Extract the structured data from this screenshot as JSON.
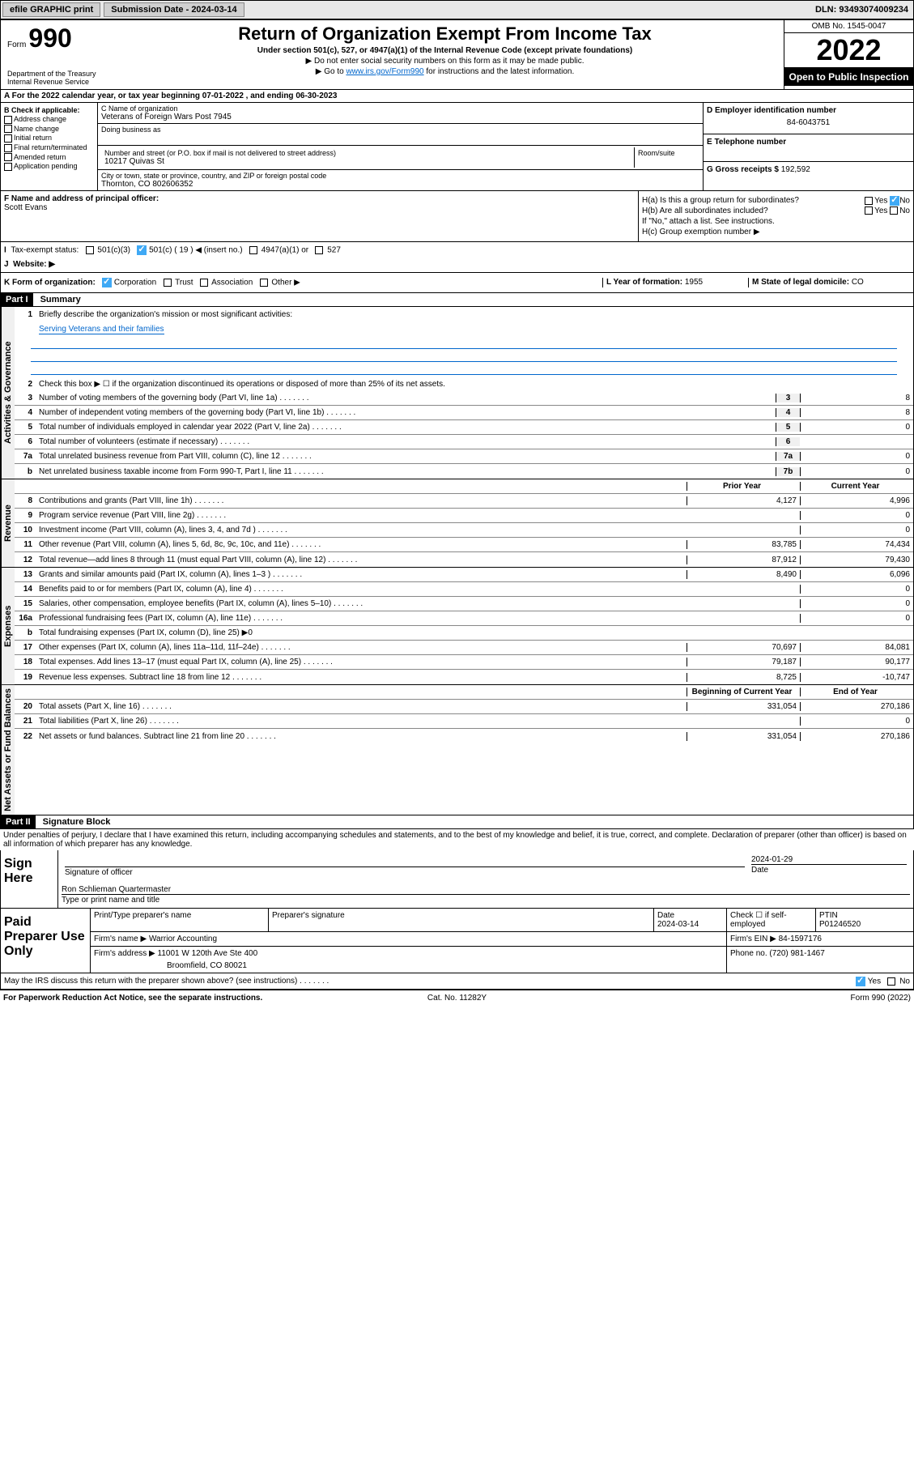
{
  "topbar": {
    "efile": "efile GRAPHIC print",
    "sub_label": "Submission Date - 2024-03-14",
    "dln": "DLN: 93493074009234"
  },
  "header": {
    "form_label": "Form",
    "form_num": "990",
    "title": "Return of Organization Exempt From Income Tax",
    "subtitle": "Under section 501(c), 527, or 4947(a)(1) of the Internal Revenue Code (except private foundations)",
    "info1": "▶ Do not enter social security numbers on this form as it may be made public.",
    "info2_pre": "▶ Go to ",
    "info2_link": "www.irs.gov/Form990",
    "info2_post": " for instructions and the latest information.",
    "omb": "OMB No. 1545-0047",
    "year": "2022",
    "inspection": "Open to Public Inspection",
    "dept": "Department of the Treasury Internal Revenue Service"
  },
  "row_a": "A For the 2022 calendar year, or tax year beginning 07-01-2022   , and ending 06-30-2023",
  "section_b": {
    "check_label": "B Check if applicable:",
    "opts": [
      "Address change",
      "Name change",
      "Initial return",
      "Final return/terminated",
      "Amended return",
      "Application pending"
    ],
    "c_label": "C Name of organization",
    "c_name": "Veterans of Foreign Wars Post 7945",
    "dba_label": "Doing business as",
    "addr_label": "Number and street (or P.O. box if mail is not delivered to street address)",
    "room_label": "Room/suite",
    "addr": "10217 Quivas St",
    "city_label": "City or town, state or province, country, and ZIP or foreign postal code",
    "city": "Thornton, CO  802606352",
    "d_label": "D Employer identification number",
    "d_ein": "84-6043751",
    "e_label": "E Telephone number",
    "g_label": "G Gross receipts $ ",
    "g_val": "192,592"
  },
  "fgh": {
    "f_label": "F Name and address of principal officer:",
    "f_name": "Scott Evans",
    "ha": "H(a)  Is this a group return for subordinates?",
    "ha_yes": "Yes",
    "ha_no": "No",
    "hb": "H(b)  Are all subordinates included?",
    "hb_note": "If \"No,\" attach a list. See instructions.",
    "hc": "H(c)  Group exemption number ▶"
  },
  "ij": {
    "i_label": "Tax-exempt status:",
    "i_501c3": "501(c)(3)",
    "i_501c": "501(c) ( 19 ) ◀ (insert no.)",
    "i_4947": "4947(a)(1) or",
    "i_527": "527",
    "j_label": "Website: ▶"
  },
  "kl": {
    "k_label": "K Form of organization:",
    "k_corp": "Corporation",
    "k_trust": "Trust",
    "k_assoc": "Association",
    "k_other": "Other ▶",
    "l_label": "L Year of formation: ",
    "l_val": "1955",
    "m_label": "M State of legal domicile: ",
    "m_val": "CO"
  },
  "part1_hdr": "Part I",
  "part1_title": "Summary",
  "summary": {
    "sections": [
      {
        "label": "Activities & Governance",
        "lines": [
          {
            "n": "1",
            "t": "Briefly describe the organization's mission or most significant activities:",
            "mission": true
          },
          {
            "mission_text": "Serving Veterans and their families"
          },
          {
            "n": "2",
            "t": "Check this box ▶ ☐  if the organization discontinued its operations or disposed of more than 25% of its net assets."
          },
          {
            "n": "3",
            "t": "Number of voting members of the governing body (Part VI, line 1a)",
            "box": "3",
            "val": "8"
          },
          {
            "n": "4",
            "t": "Number of independent voting members of the governing body (Part VI, line 1b)",
            "box": "4",
            "val": "8"
          },
          {
            "n": "5",
            "t": "Total number of individuals employed in calendar year 2022 (Part V, line 2a)",
            "box": "5",
            "val": "0"
          },
          {
            "n": "6",
            "t": "Total number of volunteers (estimate if necessary)",
            "box": "6",
            "val": ""
          },
          {
            "n": "7a",
            "t": "Total unrelated business revenue from Part VIII, column (C), line 12",
            "box": "7a",
            "val": "0"
          },
          {
            "n": "b",
            "t": "Net unrelated business taxable income from Form 990-T, Part I, line 11",
            "box": "7b",
            "val": "0"
          }
        ]
      },
      {
        "label": "Revenue",
        "hdr": {
          "c1": "Prior Year",
          "c2": "Current Year"
        },
        "lines": [
          {
            "n": "8",
            "t": "Contributions and grants (Part VIII, line 1h)",
            "v1": "4,127",
            "v2": "4,996"
          },
          {
            "n": "9",
            "t": "Program service revenue (Part VIII, line 2g)",
            "v1": "",
            "v2": "0"
          },
          {
            "n": "10",
            "t": "Investment income (Part VIII, column (A), lines 3, 4, and 7d )",
            "v1": "",
            "v2": "0"
          },
          {
            "n": "11",
            "t": "Other revenue (Part VIII, column (A), lines 5, 6d, 8c, 9c, 10c, and 11e)",
            "v1": "83,785",
            "v2": "74,434"
          },
          {
            "n": "12",
            "t": "Total revenue—add lines 8 through 11 (must equal Part VIII, column (A), line 12)",
            "v1": "87,912",
            "v2": "79,430"
          }
        ]
      },
      {
        "label": "Expenses",
        "lines": [
          {
            "n": "13",
            "t": "Grants and similar amounts paid (Part IX, column (A), lines 1–3 )",
            "v1": "8,490",
            "v2": "6,096"
          },
          {
            "n": "14",
            "t": "Benefits paid to or for members (Part IX, column (A), line 4)",
            "v1": "",
            "v2": "0"
          },
          {
            "n": "15",
            "t": "Salaries, other compensation, employee benefits (Part IX, column (A), lines 5–10)",
            "v1": "",
            "v2": "0"
          },
          {
            "n": "16a",
            "t": "Professional fundraising fees (Part IX, column (A), line 11e)",
            "v1": "",
            "v2": "0"
          },
          {
            "n": "b",
            "t": "Total fundraising expenses (Part IX, column (D), line 25)  ▶0",
            "gray": true
          },
          {
            "n": "17",
            "t": "Other expenses (Part IX, column (A), lines 11a–11d, 11f–24e)",
            "v1": "70,697",
            "v2": "84,081"
          },
          {
            "n": "18",
            "t": "Total expenses. Add lines 13–17 (must equal Part IX, column (A), line 25)",
            "v1": "79,187",
            "v2": "90,177"
          },
          {
            "n": "19",
            "t": "Revenue less expenses. Subtract line 18 from line 12",
            "v1": "8,725",
            "v2": "-10,747"
          }
        ]
      },
      {
        "label": "Net Assets or Fund Balances",
        "hdr": {
          "c1": "Beginning of Current Year",
          "c2": "End of Year"
        },
        "lines": [
          {
            "n": "20",
            "t": "Total assets (Part X, line 16)",
            "v1": "331,054",
            "v2": "270,186"
          },
          {
            "n": "21",
            "t": "Total liabilities (Part X, line 26)",
            "v1": "",
            "v2": "0"
          },
          {
            "n": "22",
            "t": "Net assets or fund balances. Subtract line 21 from line 20",
            "v1": "331,054",
            "v2": "270,186"
          }
        ]
      }
    ]
  },
  "part2_hdr": "Part II",
  "part2_title": "Signature Block",
  "sig_perjury": "Under penalties of perjury, I declare that I have examined this return, including accompanying schedules and statements, and to the best of my knowledge and belief, it is true, correct, and complete. Declaration of preparer (other than officer) is based on all information of which preparer has any knowledge.",
  "sign": {
    "label": "Sign Here",
    "sig_officer": "Signature of officer",
    "date_label": "Date",
    "date": "2024-01-29",
    "name": "Ron Schlieman Quartermaster",
    "name_label": "Type or print name and title"
  },
  "paid": {
    "label": "Paid Preparer Use Only",
    "h1": "Print/Type preparer's name",
    "h2": "Preparer's signature",
    "h3": "Date",
    "h3v": "2024-03-14",
    "h4": "Check ☐ if self-employed",
    "h5": "PTIN",
    "h5v": "P01246520",
    "firm_name_label": "Firm's name   ▶ ",
    "firm_name": "Warrior Accounting",
    "firm_ein_label": "Firm's EIN ▶ ",
    "firm_ein": "84-1597176",
    "firm_addr_label": "Firm's address ▶ ",
    "firm_addr": "11001 W 120th Ave Ste 400",
    "firm_city": "Broomfield, CO  80021",
    "phone_label": "Phone no. ",
    "phone": "(720) 981-1467"
  },
  "discuss": "May the IRS discuss this return with the preparer shown above? (see instructions)",
  "discuss_yes": "Yes",
  "discuss_no": "No",
  "footer": {
    "left": "For Paperwork Reduction Act Notice, see the separate instructions.",
    "mid": "Cat. No. 11282Y",
    "right": "Form 990 (2022)"
  }
}
